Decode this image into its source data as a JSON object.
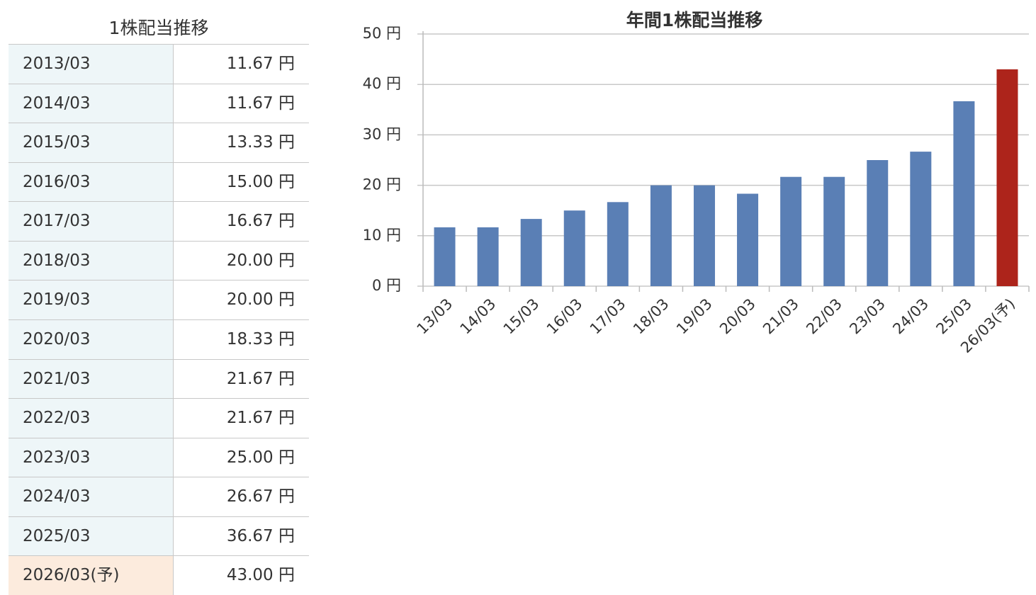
{
  "table": {
    "title": "1株配当推移",
    "rows": [
      [
        "2013/03",
        "11.67 円"
      ],
      [
        "2014/03",
        "11.67 円"
      ],
      [
        "2015/03",
        "13.33 円"
      ],
      [
        "2016/03",
        "15.00 円"
      ],
      [
        "2017/03",
        "16.67 円"
      ],
      [
        "2018/03",
        "20.00 円"
      ],
      [
        "2019/03",
        "20.00 円"
      ],
      [
        "2020/03",
        "18.33 円"
      ],
      [
        "2021/03",
        "21.67 円"
      ],
      [
        "2022/03",
        "21.67 円"
      ],
      [
        "2023/03",
        "25.00 円"
      ],
      [
        "2024/03",
        "26.67 円"
      ],
      [
        "2025/03",
        "36.67 円"
      ],
      [
        "2026/03(予)",
        "43.00 円"
      ]
    ]
  },
  "chart_data": {
    "type": "bar",
    "title": "年間1株配当推移",
    "categories": [
      "13/03",
      "14/03",
      "15/03",
      "16/03",
      "17/03",
      "18/03",
      "19/03",
      "20/03",
      "21/03",
      "22/03",
      "23/03",
      "24/03",
      "25/03",
      "26/03(予)"
    ],
    "values": [
      11.67,
      11.67,
      13.33,
      15.0,
      16.67,
      20.0,
      20.0,
      18.33,
      21.67,
      21.67,
      25.0,
      26.67,
      36.67,
      43.0
    ],
    "colors": [
      "#5a7fb5",
      "#5a7fb5",
      "#5a7fb5",
      "#5a7fb5",
      "#5a7fb5",
      "#5a7fb5",
      "#5a7fb5",
      "#5a7fb5",
      "#5a7fb5",
      "#5a7fb5",
      "#5a7fb5",
      "#5a7fb5",
      "#5a7fb5",
      "#ad241b"
    ],
    "ylim": [
      0,
      50
    ],
    "yticks": [
      {
        "value": 0,
        "label": "0 円"
      },
      {
        "value": 10,
        "label": "10 円"
      },
      {
        "value": 20,
        "label": "20 円"
      },
      {
        "value": 30,
        "label": "30 円"
      },
      {
        "value": 40,
        "label": "40 円"
      },
      {
        "value": 50,
        "label": "50 円"
      }
    ],
    "grid": true
  }
}
